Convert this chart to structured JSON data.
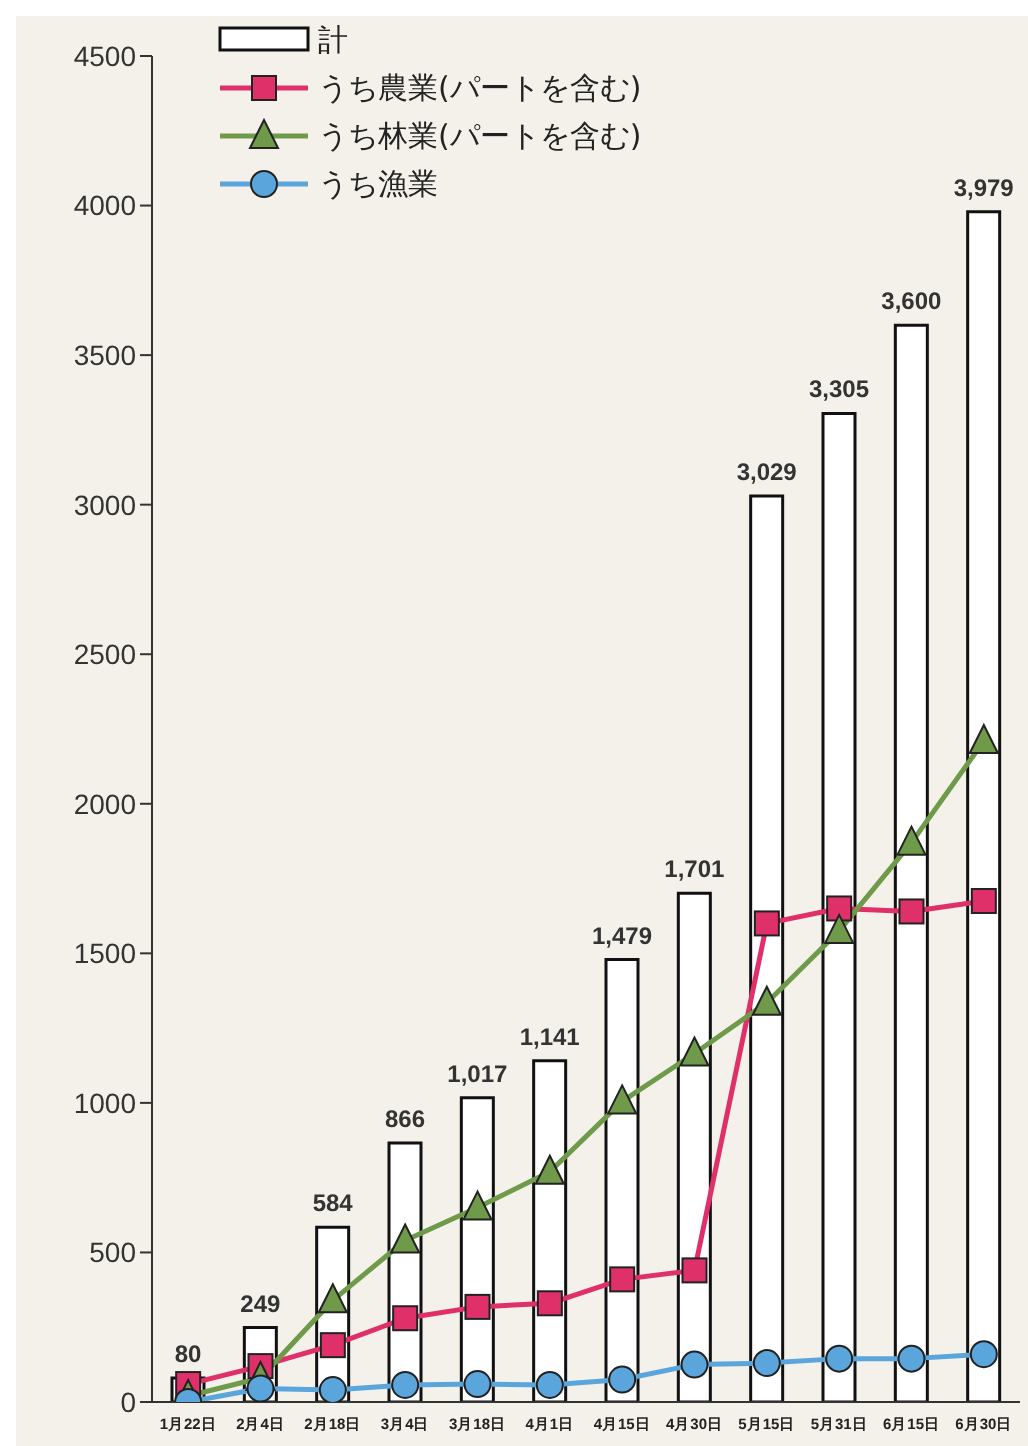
{
  "chart_data": {
    "type": "bar",
    "categories": [
      "1月22日",
      "2月4日",
      "2月18日",
      "3月4日",
      "3月18日",
      "4月1日",
      "4月15日",
      "4月30日",
      "5月15日",
      "5月31日",
      "6月15日",
      "6月30日"
    ],
    "series": [
      {
        "name": "計",
        "color": "#ffffff",
        "values": [
          80,
          249,
          584,
          866,
          1017,
          1141,
          1479,
          1701,
          3029,
          3305,
          3600,
          3979
        ],
        "value_labels": [
          "80",
          "249",
          "584",
          "866",
          "1,017",
          "1,141",
          "1,479",
          "1,701",
          "3,029",
          "3,305",
          "3,600",
          "3,979"
        ]
      },
      {
        "name": "うち農業(パートを含む)",
        "type": "line",
        "marker": "square",
        "color": "#e0306a",
        "values": [
          60,
          120,
          190,
          280,
          318,
          330,
          410,
          440,
          1600,
          1650,
          1640,
          1675
        ]
      },
      {
        "name": "うち林業(パートを含む)",
        "type": "line",
        "marker": "triangle",
        "color": "#6f9a4a",
        "values": [
          20,
          80,
          340,
          540,
          650,
          770,
          1005,
          1165,
          1335,
          1575,
          1870,
          2210
        ]
      },
      {
        "name": "うち漁業",
        "type": "line",
        "marker": "circle",
        "color": "#5aa6dc",
        "values": [
          0,
          45,
          40,
          57,
          60,
          57,
          75,
          125,
          130,
          145,
          145,
          160
        ]
      }
    ],
    "ylim": [
      0,
      4500
    ],
    "yticks": [
      0,
      500,
      1000,
      1500,
      2000,
      2500,
      3000,
      3500,
      4000,
      4500
    ],
    "grid": false,
    "legend": "top left"
  }
}
